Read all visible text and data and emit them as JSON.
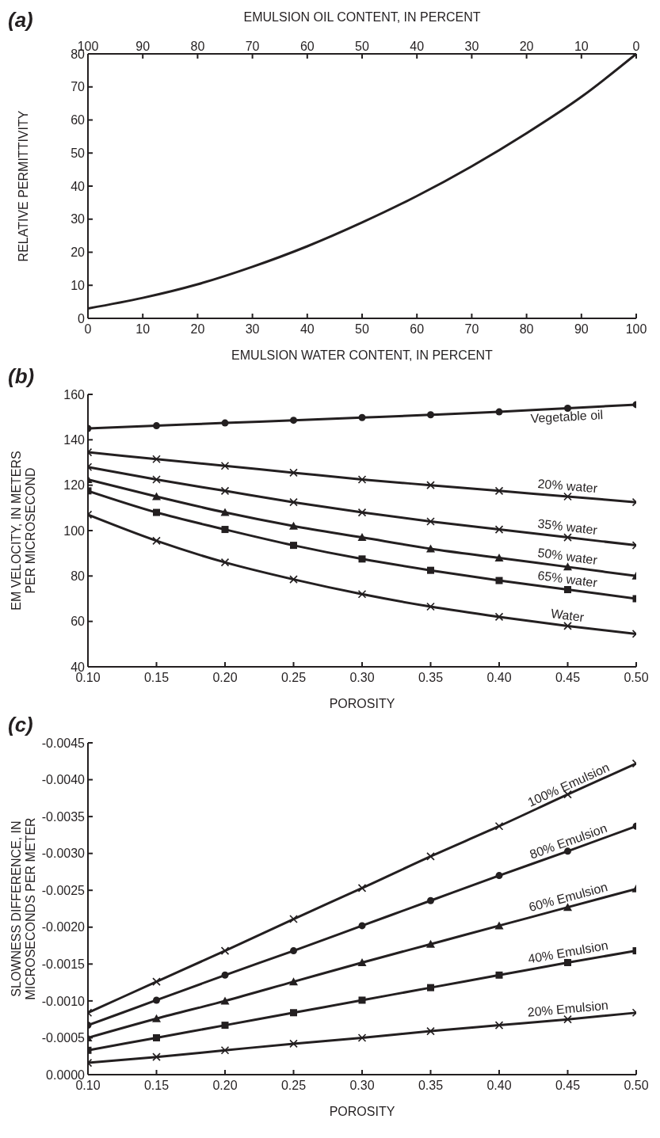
{
  "chart_data": [
    {
      "type": "line",
      "annotations": [
        "(a)"
      ],
      "xlabel": "EMULSION WATER CONTENT, IN PERCENT",
      "x2label": "EMULSION OIL CONTENT, IN PERCENT",
      "ylabel": "RELATIVE PERMITTIVITY",
      "line_style": "solid",
      "legend": false,
      "grid": false,
      "x": [
        0,
        10,
        20,
        30,
        40,
        50,
        60,
        70,
        80,
        90,
        100
      ],
      "xlim": [
        0,
        100
      ],
      "xticks": [
        0,
        10,
        20,
        30,
        40,
        50,
        60,
        70,
        80,
        90,
        100
      ],
      "x2lim": [
        100,
        0
      ],
      "x2ticks": [
        100,
        90,
        80,
        70,
        60,
        50,
        40,
        30,
        20,
        10,
        0
      ],
      "ylim": [
        0,
        80
      ],
      "yticks": [
        0,
        10,
        20,
        30,
        40,
        50,
        60,
        70,
        80
      ],
      "series": [
        {
          "color": "#231f20",
          "values": [
            3,
            6.2,
            10.3,
            15.6,
            21.8,
            29,
            37,
            46,
            56,
            67,
            80
          ]
        }
      ]
    },
    {
      "type": "line",
      "annotations": [
        "(b)"
      ],
      "xlabel": "POROSITY",
      "ylabel": "EM VELOCITY, IN METERS PER MICROSECOND",
      "line_style": "solid",
      "legend": false,
      "grid": false,
      "x": [
        0.1,
        0.15,
        0.2,
        0.25,
        0.3,
        0.35,
        0.4,
        0.45,
        0.5
      ],
      "xlim": [
        0.1,
        0.5
      ],
      "xticks": [
        {
          "value": 0.1,
          "label": "0.10"
        },
        0.15,
        {
          "value": 0.2,
          "label": "0.20"
        },
        0.25,
        {
          "value": 0.3,
          "label": "0.30"
        },
        0.35,
        {
          "value": 0.4,
          "label": "0.40"
        },
        0.45,
        {
          "value": 0.5,
          "label": "0.50"
        }
      ],
      "ylim": [
        40,
        160
      ],
      "yticks": [
        40,
        60,
        80,
        100,
        120,
        140,
        160
      ],
      "series": [
        {
          "name": "Vegetable oil",
          "color": "#231f20",
          "marker": "circle",
          "values": [
            145,
            146.2,
            147.4,
            148.6,
            149.8,
            151,
            152.3,
            153.9,
            155.5
          ]
        },
        {
          "name": "20% water",
          "color": "#231f20",
          "marker": "cross",
          "values": [
            134.5,
            131.5,
            128.5,
            125.5,
            122.5,
            120,
            117.5,
            115,
            112.5
          ]
        },
        {
          "name": "35% water",
          "color": "#231f20",
          "marker": "cross",
          "values": [
            128,
            122.5,
            117.5,
            112.5,
            108,
            104,
            100.5,
            97,
            93.5
          ]
        },
        {
          "name": "50% water",
          "color": "#231f20",
          "marker": "triangle",
          "values": [
            122.5,
            115,
            108,
            102,
            97,
            92,
            88,
            84,
            80
          ]
        },
        {
          "name": "65% water",
          "color": "#231f20",
          "marker": "square",
          "values": [
            117.5,
            108,
            100.5,
            93.5,
            87.5,
            82.5,
            78,
            74,
            70
          ]
        },
        {
          "name": "Water",
          "color": "#231f20",
          "marker": "cross",
          "values": [
            107,
            95.5,
            86,
            78.5,
            72,
            66.5,
            62,
            58,
            54.5
          ]
        }
      ]
    },
    {
      "type": "line",
      "annotations": [
        "(c)"
      ],
      "xlabel": "POROSITY",
      "ylabel": "SLOWNESS DIFFERENCE, IN MICROSECONDS PER METER",
      "line_style": "solid",
      "legend": false,
      "grid": false,
      "x": [
        0.1,
        0.15,
        0.2,
        0.25,
        0.3,
        0.35,
        0.4,
        0.45,
        0.5
      ],
      "xlim": [
        0.1,
        0.5
      ],
      "xticks": [
        {
          "value": 0.1,
          "label": "0.10"
        },
        0.15,
        {
          "value": 0.2,
          "label": "0.20"
        },
        0.25,
        {
          "value": 0.3,
          "label": "0.30"
        },
        0.35,
        {
          "value": 0.4,
          "label": "0.40"
        },
        0.45,
        {
          "value": 0.5,
          "label": "0.50"
        }
      ],
      "ylim": [
        0,
        -0.0045
      ],
      "yticks": [
        {
          "value": 0,
          "label": "0.0000"
        },
        -0.0005,
        {
          "value": -0.001,
          "label": "-0.0010"
        },
        {
          "value": -0.0015,
          "label": "-0.0015"
        },
        {
          "value": -0.002,
          "label": "-0.0020"
        },
        {
          "value": -0.0025,
          "label": "-0.0025"
        },
        {
          "value": -0.003,
          "label": "-0.0030"
        },
        {
          "value": -0.0035,
          "label": "-0.0035"
        },
        {
          "value": -0.004,
          "label": "-0.0040"
        },
        {
          "value": -0.0045,
          "label": "-0.0045"
        }
      ],
      "series": [
        {
          "name": "100% Emulsion",
          "color": "#231f20",
          "marker": "cross",
          "values": [
            -0.00084,
            -0.00126,
            -0.00168,
            -0.00211,
            -0.00253,
            -0.00296,
            -0.00337,
            -0.0038,
            -0.00422
          ]
        },
        {
          "name": "80% Emulsion",
          "color": "#231f20",
          "marker": "circle",
          "values": [
            -0.00067,
            -0.00101,
            -0.00135,
            -0.00168,
            -0.00202,
            -0.00236,
            -0.0027,
            -0.00303,
            -0.00337
          ]
        },
        {
          "name": "60% Emulsion",
          "color": "#231f20",
          "marker": "triangle",
          "values": [
            -0.0005,
            -0.00076,
            -0.001,
            -0.00126,
            -0.00152,
            -0.00177,
            -0.00202,
            -0.00227,
            -0.00252
          ]
        },
        {
          "name": "40% Emulsion",
          "color": "#231f20",
          "marker": "square",
          "values": [
            -0.00033,
            -0.0005,
            -0.00067,
            -0.00084,
            -0.00101,
            -0.00118,
            -0.00135,
            -0.00152,
            -0.00168
          ]
        },
        {
          "name": "20% Emulsion",
          "color": "#231f20",
          "marker": "cross",
          "values": [
            -0.00016,
            -0.00024,
            -0.00033,
            -0.00042,
            -0.0005,
            -0.00059,
            -0.00067,
            -0.00075,
            -0.00084
          ]
        }
      ]
    }
  ]
}
